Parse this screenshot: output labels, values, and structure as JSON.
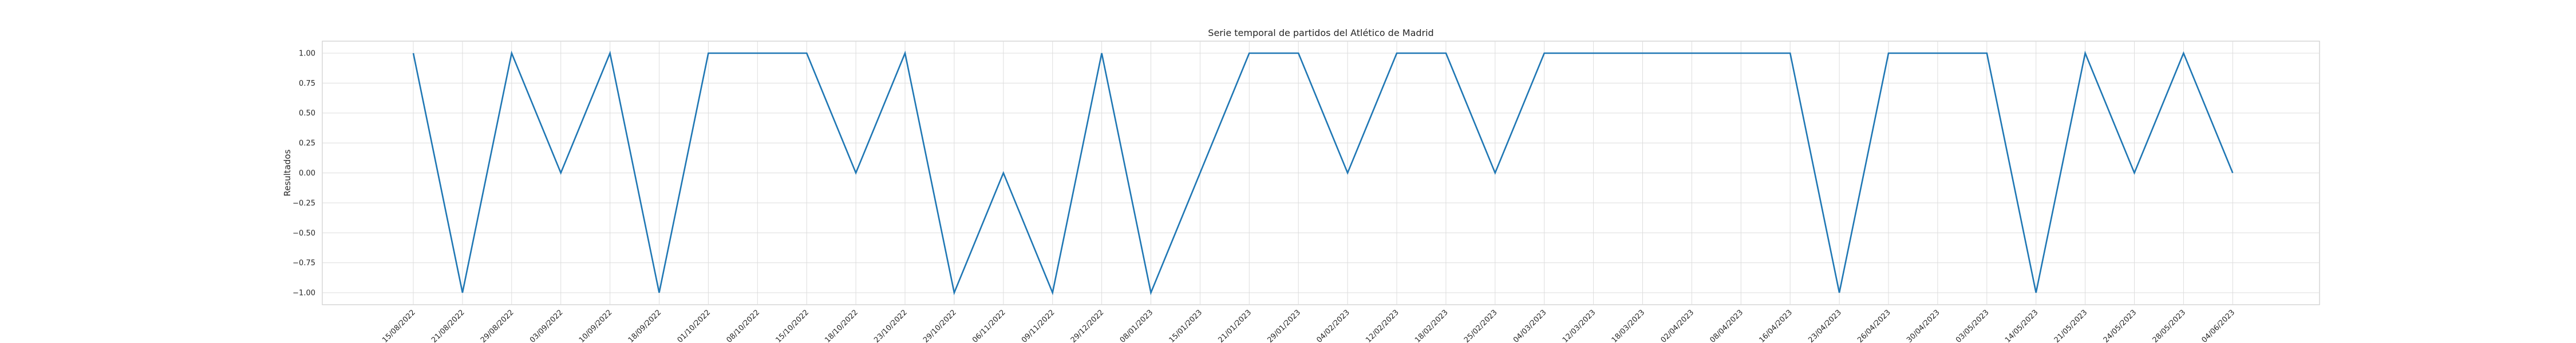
{
  "chart_data": {
    "type": "line",
    "title": "Serie temporal de partidos del Atlético de Madrid",
    "xlabel": "",
    "ylabel": "Resultados",
    "ylim": [
      -1.1,
      1.1
    ],
    "yticks": [
      "1.00",
      "0.75",
      "0.50",
      "0.25",
      "0.00",
      "−0.25",
      "−0.50",
      "−0.75",
      "−1.00"
    ],
    "ytick_values": [
      1.0,
      0.75,
      0.5,
      0.25,
      0.0,
      -0.25,
      -0.5,
      -0.75,
      -1.0
    ],
    "grid": true,
    "line_color": "#1f77b4",
    "categories": [
      "15/08/2022",
      "21/08/2022",
      "29/08/2022",
      "03/09/2022",
      "10/09/2022",
      "18/09/2022",
      "01/10/2022",
      "08/10/2022",
      "15/10/2022",
      "18/10/2022",
      "23/10/2022",
      "29/10/2022",
      "06/11/2022",
      "09/11/2022",
      "29/12/2022",
      "08/01/2023",
      "15/01/2023",
      "21/01/2023",
      "29/01/2023",
      "04/02/2023",
      "12/02/2023",
      "18/02/2023",
      "25/02/2023",
      "04/03/2023",
      "12/03/2023",
      "18/03/2023",
      "02/04/2023",
      "08/04/2023",
      "16/04/2023",
      "23/04/2023",
      "26/04/2023",
      "30/04/2023",
      "03/05/2023",
      "14/05/2023",
      "21/05/2023",
      "24/05/2023",
      "28/05/2023",
      "04/06/2023"
    ],
    "values": [
      1,
      -1,
      1,
      0,
      1,
      -1,
      1,
      1,
      1,
      0,
      1,
      -1,
      0,
      -1,
      1,
      -1,
      0,
      1,
      1,
      0,
      1,
      1,
      0,
      1,
      1,
      1,
      1,
      1,
      1,
      -1,
      1,
      1,
      1,
      -1,
      1,
      0,
      1,
      0
    ]
  }
}
